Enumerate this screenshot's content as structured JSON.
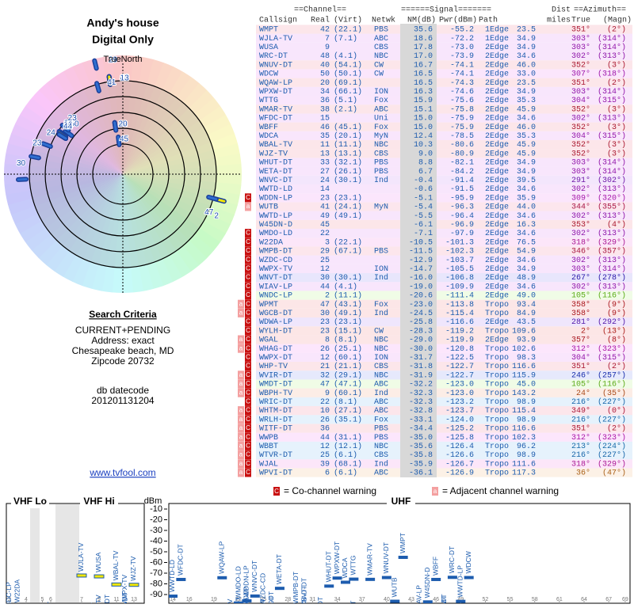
{
  "header": {
    "title": "Andy's house",
    "subtitle": "Digital Only",
    "north": "TrueNorth"
  },
  "criteria": {
    "heading": "Search Criteria",
    "lines": [
      "CURRENT+PENDING",
      "Address: exact",
      "Chesapeake beach, MD",
      "Zipcode 20732"
    ],
    "datecode_label": "db datecode",
    "datecode": "201201131204",
    "link": "www.tvfool.com"
  },
  "table": {
    "group_headers": [
      "==Channel==",
      "======Signal=======",
      "Dist",
      "==Azimuth=="
    ],
    "columns": [
      "Callsign",
      "Real",
      "(Virt)",
      "Netwk",
      "NM(dB)",
      "Pwr(dBm)",
      "Path",
      "miles",
      "True",
      "(Magn)"
    ],
    "rows": [
      [
        "WMPT",
        "42",
        "(22.1)",
        "PBS",
        "35.6",
        "-55.2",
        "1Edge",
        "23.5",
        "351°",
        "(2°)",
        null
      ],
      [
        "WJLA-TV",
        "7",
        "(7.1)",
        "ABC",
        "18.6",
        "-72.2",
        "1Edge",
        "34.9",
        "303°",
        "(314°)",
        null
      ],
      [
        "WUSA",
        "9",
        null,
        "CBS",
        "17.8",
        "-73.0",
        "2Edge",
        "34.9",
        "303°",
        "(314°)",
        null
      ],
      [
        "WRC-DT",
        "48",
        "(4.1)",
        "NBC",
        "17.0",
        "-73.9",
        "2Edge",
        "34.6",
        "302°",
        "(313°)",
        null
      ],
      [
        "WNUV-DT",
        "40",
        "(54.1)",
        "CW",
        "16.7",
        "-74.1",
        "2Edge",
        "46.0",
        "352°",
        "(3°)",
        null
      ],
      [
        "WDCW",
        "50",
        "(50.1)",
        "CW",
        "16.5",
        "-74.1",
        "2Edge",
        "33.0",
        "307°",
        "(318°)",
        null
      ],
      [
        "WQAW-LP",
        "20",
        "(69.1)",
        null,
        "16.5",
        "-74.3",
        "2Edge",
        "23.5",
        "351°",
        "(2°)",
        null
      ],
      [
        "WPXW-DT",
        "34",
        "(66.1)",
        "ION",
        "16.3",
        "-74.6",
        "2Edge",
        "34.9",
        "303°",
        "(314°)",
        null
      ],
      [
        "WTTG",
        "36",
        "(5.1)",
        "Fox",
        "15.9",
        "-75.6",
        "2Edge",
        "35.3",
        "304°",
        "(315°)",
        null
      ],
      [
        "WMAR-TV",
        "38",
        "(2.1)",
        "ABC",
        "15.1",
        "-75.8",
        "2Edge",
        "45.9",
        "352°",
        "(3°)",
        null
      ],
      [
        "WFDC-DT",
        "15",
        null,
        "Uni",
        "15.0",
        "-75.9",
        "2Edge",
        "34.6",
        "302°",
        "(313°)",
        null
      ],
      [
        "WBFF",
        "46",
        "(45.1)",
        "Fox",
        "15.0",
        "-75.9",
        "2Edge",
        "46.0",
        "352°",
        "(3°)",
        null
      ],
      [
        "WDCA",
        "35",
        "(20.1)",
        "MyN",
        "12.4",
        "-78.5",
        "2Edge",
        "35.3",
        "304°",
        "(315°)",
        null
      ],
      [
        "WBAL-TV",
        "11",
        "(11.1)",
        "NBC",
        "10.3",
        "-80.6",
        "2Edge",
        "45.9",
        "352°",
        "(3°)",
        null
      ],
      [
        "WJZ-TV",
        "13",
        "(13.1)",
        "CBS",
        "9.0",
        "-80.9",
        "2Edge",
        "45.9",
        "352°",
        "(3°)",
        null
      ],
      [
        "WHUT-DT",
        "33",
        "(32.1)",
        "PBS",
        "8.8",
        "-82.1",
        "2Edge",
        "34.9",
        "303°",
        "(314°)",
        null
      ],
      [
        "WETA-DT",
        "27",
        "(26.1)",
        "PBS",
        "6.7",
        "-84.2",
        "2Edge",
        "34.9",
        "303°",
        "(314°)",
        null
      ],
      [
        "WNVC-DT",
        "24",
        "(30.1)",
        "Ind",
        "-0.4",
        "-91.4",
        "2Edge",
        "39.5",
        "291°",
        "(302°)",
        null
      ],
      [
        "WWTD-LD",
        "14",
        null,
        null,
        "-0.6",
        "-91.5",
        "2Edge",
        "34.6",
        "302°",
        "(313°)",
        null
      ],
      [
        "WDDN-LP",
        "23",
        "(23.1)",
        null,
        "-5.1",
        "-95.9",
        "2Edge",
        "35.9",
        "309°",
        "(320°)",
        [
          "C"
        ]
      ],
      [
        "WUTB",
        "41",
        "(24.1)",
        "MyN",
        "-5.4",
        "-96.3",
        "2Edge",
        "44.0",
        "344°",
        "(355°)",
        [
          "a"
        ]
      ],
      [
        "WWTD-LP",
        "49",
        "(49.1)",
        null,
        "-5.5",
        "-96.4",
        "2Edge",
        "34.6",
        "302°",
        "(313°)",
        null
      ],
      [
        "W45DN-D",
        "45",
        null,
        null,
        "-6.1",
        "-96.9",
        "2Edge",
        "16.3",
        "353°",
        "(4°)",
        null
      ],
      [
        "WMDO-LD",
        "22",
        null,
        null,
        "-7.1",
        "-97.9",
        "2Edge",
        "34.6",
        "302°",
        "(313°)",
        [
          "C"
        ]
      ],
      [
        "W22DA",
        "3",
        "(22.1)",
        null,
        "-10.5",
        "-101.3",
        "2Edge",
        "76.5",
        "318°",
        "(329°)",
        [
          "C"
        ]
      ],
      [
        "WMPB-DT",
        "29",
        "(67.1)",
        "PBS",
        "-11.5",
        "-102.3",
        "2Edge",
        "54.9",
        "346°",
        "(357°)",
        [
          "C"
        ]
      ],
      [
        "WZDC-CD",
        "25",
        null,
        null,
        "-12.9",
        "-103.7",
        "2Edge",
        "34.6",
        "302°",
        "(313°)",
        [
          "C"
        ]
      ],
      [
        "WWPX-TV",
        "12",
        null,
        "ION",
        "-14.7",
        "-105.5",
        "2Edge",
        "34.9",
        "303°",
        "(314°)",
        [
          "C"
        ]
      ],
      [
        "WNVT-DT",
        "30",
        "(30.1)",
        "Ind",
        "-16.0",
        "-106.8",
        "2Edge",
        "48.9",
        "267°",
        "(278°)",
        [
          "C"
        ]
      ],
      [
        "WIAV-LP",
        "44",
        "(4.1)",
        null,
        "-19.0",
        "-109.9",
        "2Edge",
        "34.6",
        "302°",
        "(313°)",
        [
          "C"
        ]
      ],
      [
        "WNDC-LP",
        "2",
        "(11.1)",
        null,
        "-20.6",
        "-111.4",
        "2Edge",
        "49.0",
        "105°",
        "(116°)",
        [
          "C"
        ]
      ],
      [
        "WPMT",
        "47",
        "(43.1)",
        "Fox",
        "-23.0",
        "-113.8",
        "Tropo",
        "93.4",
        "358°",
        "(9°)",
        [
          "a",
          "C"
        ]
      ],
      [
        "WGCB-DT",
        "30",
        "(49.1)",
        "Ind",
        "-24.5",
        "-115.4",
        "Tropo",
        "84.9",
        "358°",
        "(9°)",
        [
          "a",
          "C"
        ]
      ],
      [
        "WDWA-LP",
        "23",
        "(23.1)",
        null,
        "-25.8",
        "-116.6",
        "2Edge",
        "43.5",
        "281°",
        "(292°)",
        [
          "C"
        ]
      ],
      [
        "WYLH-DT",
        "23",
        "(15.1)",
        "CW",
        "-28.3",
        "-119.2",
        "Tropo",
        "109.6",
        "2°",
        "(13°)",
        [
          "C"
        ]
      ],
      [
        "WGAL",
        "8",
        "(8.1)",
        "NBC",
        "-29.0",
        "-119.9",
        "2Edge",
        "93.9",
        "357°",
        "(8°)",
        [
          "a",
          "C"
        ]
      ],
      [
        "WHAG-DT",
        "26",
        "(25.1)",
        "NBC",
        "-30.0",
        "-120.8",
        "Tropo",
        "102.6",
        "312°",
        "(323°)",
        [
          "a",
          "C"
        ]
      ],
      [
        "WWPX-DT",
        "12",
        "(60.1)",
        "ION",
        "-31.7",
        "-122.5",
        "Tropo",
        "98.3",
        "304°",
        "(315°)",
        [
          "C"
        ]
      ],
      [
        "WHP-TV",
        "21",
        "(21.1)",
        "CBS",
        "-31.8",
        "-122.7",
        "Tropo",
        "116.6",
        "351°",
        "(2°)",
        [
          "C"
        ]
      ],
      [
        "WVIR-DT",
        "32",
        "(29.1)",
        "NBC",
        "-31.9",
        "-122.7",
        "Tropo",
        "115.9",
        "246°",
        "(257°)",
        [
          "a",
          "C"
        ]
      ],
      [
        "WMDT-DT",
        "47",
        "(47.1)",
        "ABC",
        "-32.2",
        "-123.0",
        "Tropo",
        "45.0",
        "105°",
        "(116°)",
        [
          "a",
          "C"
        ]
      ],
      [
        "WBPH-TV",
        "9",
        "(60.1)",
        "Ind",
        "-32.3",
        "-123.0",
        "Tropo",
        "143.2",
        "24°",
        "(35°)",
        [
          "a",
          "C"
        ]
      ],
      [
        "WRIC-DT",
        "22",
        "(8.1)",
        "ABC",
        "-32.3",
        "-123.2",
        "Tropo",
        "98.9",
        "216°",
        "(227°)",
        [
          "C"
        ]
      ],
      [
        "WHTM-DT",
        "10",
        "(27.1)",
        "ABC",
        "-32.8",
        "-123.7",
        "Tropo",
        "115.4",
        "349°",
        "(0°)",
        [
          "a",
          "C"
        ]
      ],
      [
        "WRLH-DT",
        "26",
        "(35.1)",
        "Fox",
        "-33.1",
        "-124.0",
        "Tropo",
        "98.9",
        "216°",
        "(227°)",
        [
          "a",
          "C"
        ]
      ],
      [
        "WITF-DT",
        "36",
        null,
        "PBS",
        "-34.4",
        "-125.2",
        "Tropo",
        "116.6",
        "351°",
        "(2°)",
        [
          "a",
          "C"
        ]
      ],
      [
        "WWPB",
        "44",
        "(31.1)",
        "PBS",
        "-35.0",
        "-125.8",
        "Tropo",
        "102.3",
        "312°",
        "(323°)",
        [
          "a",
          "C"
        ]
      ],
      [
        "WBBT",
        "12",
        "(12.1)",
        "NBC",
        "-35.6",
        "-126.4",
        "Tropo",
        "96.2",
        "213°",
        "(224°)",
        [
          "a",
          "C"
        ]
      ],
      [
        "WTVR-DT",
        "25",
        "(6.1)",
        "CBS",
        "-35.8",
        "-126.6",
        "Tropo",
        "98.9",
        "216°",
        "(227°)",
        [
          "a",
          "C"
        ]
      ],
      [
        "WJAL",
        "39",
        "(68.1)",
        "Ind",
        "-35.9",
        "-126.7",
        "Tropo",
        "111.6",
        "318°",
        "(329°)",
        [
          "a",
          "C"
        ]
      ],
      [
        "WPVI-DT",
        "6",
        "(6.1)",
        "ABC",
        "-36.1",
        "-126.9",
        "Tropo",
        "117.3",
        "36°",
        "(47°)",
        [
          "a",
          "C"
        ]
      ]
    ]
  },
  "legend": {
    "co_icon": "C",
    "co_text": "= Co-channel warning",
    "adj_icon": "a",
    "adj_text": "= Adjacent channel warning"
  },
  "spectrum": {
    "y_unit": "dBm",
    "ylim": [
      -10,
      -90
    ],
    "yticks": [
      -10,
      -20,
      -30,
      -40,
      -50,
      -60,
      -70,
      -80,
      -90
    ],
    "bands": [
      "VHF Lo",
      "VHF Hi",
      "UHF"
    ],
    "vhf_lo_ticks": [
      2,
      4,
      5,
      6
    ],
    "vhf_hi_ticks": [
      7,
      9,
      11,
      13
    ],
    "uhf_ticks": [
      14,
      16,
      19,
      22,
      25,
      28,
      31,
      34,
      37,
      40,
      43,
      46,
      49,
      52,
      55,
      58,
      61,
      64,
      67,
      69
    ]
  }
}
